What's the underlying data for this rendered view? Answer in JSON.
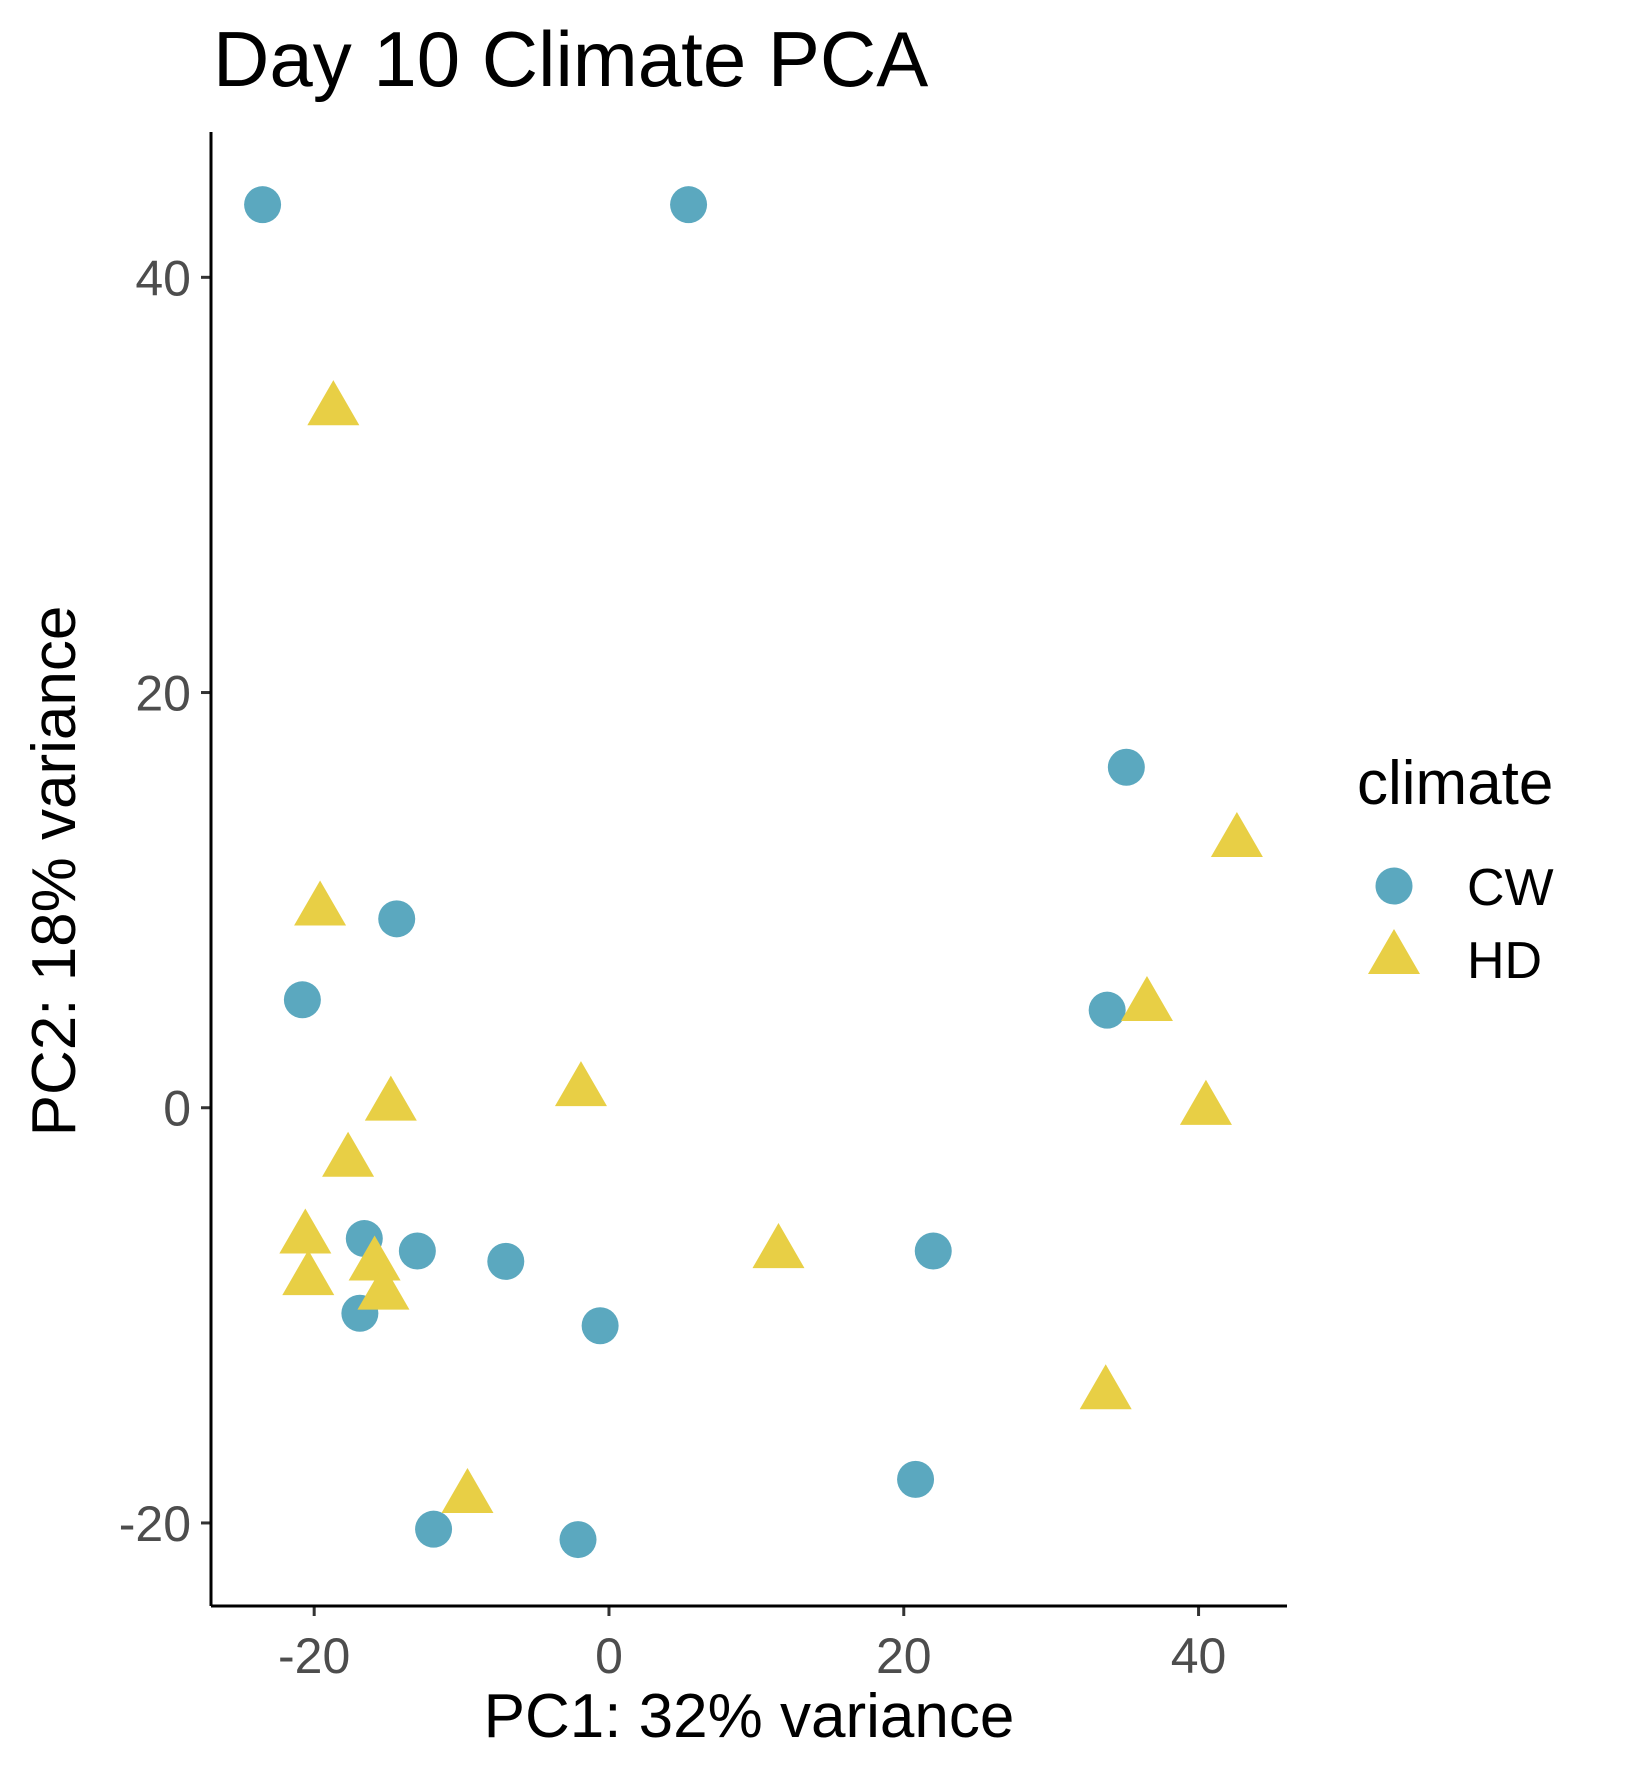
{
  "chart_data": {
    "type": "scatter",
    "title": "Day 10 Climate PCA",
    "xlabel": "PC1: 32% variance",
    "ylabel": "PC2: 18% variance",
    "xlim": [
      -27,
      46
    ],
    "ylim": [
      -24,
      47
    ],
    "x_ticks": [
      -20,
      0,
      20,
      40
    ],
    "y_ticks": [
      -20,
      0,
      20,
      40
    ],
    "x_tick_labels": [
      "-20",
      "0",
      "20",
      "40"
    ],
    "y_tick_labels": [
      "-20",
      "0",
      "20",
      "40"
    ],
    "grid": false,
    "legend": {
      "title": "climate",
      "placement": "right",
      "entries": [
        {
          "label": "CW",
          "shape": "circle",
          "color": "#5BA8BF"
        },
        {
          "label": "HD",
          "shape": "triangle",
          "color": "#E8CF45"
        }
      ]
    },
    "series": [
      {
        "name": "CW",
        "shape": "circle",
        "color": "#5BA8BF",
        "points": [
          {
            "x": -23.5,
            "y": 43.5
          },
          {
            "x": 5.4,
            "y": 43.5
          },
          {
            "x": 35.1,
            "y": 16.4
          },
          {
            "x": -14.4,
            "y": 9.1
          },
          {
            "x": -20.8,
            "y": 5.2
          },
          {
            "x": 33.8,
            "y": 4.7
          },
          {
            "x": -16.6,
            "y": -6.3
          },
          {
            "x": -13.0,
            "y": -6.9
          },
          {
            "x": -7.0,
            "y": -7.4
          },
          {
            "x": 22.0,
            "y": -6.9
          },
          {
            "x": -16.9,
            "y": -9.9
          },
          {
            "x": -0.6,
            "y": -10.5
          },
          {
            "x": 20.8,
            "y": -17.9
          },
          {
            "x": -11.9,
            "y": -20.3
          },
          {
            "x": -2.1,
            "y": -20.8
          }
        ]
      },
      {
        "name": "HD",
        "shape": "triangle",
        "color": "#E8CF45",
        "points": [
          {
            "x": -18.7,
            "y": 33.6
          },
          {
            "x": -19.6,
            "y": 9.5
          },
          {
            "x": 42.6,
            "y": 12.8
          },
          {
            "x": 36.5,
            "y": 4.9
          },
          {
            "x": -1.9,
            "y": 0.8
          },
          {
            "x": -14.8,
            "y": 0.1
          },
          {
            "x": 40.5,
            "y": -0.1
          },
          {
            "x": -17.7,
            "y": -2.6
          },
          {
            "x": -20.6,
            "y": -6.3
          },
          {
            "x": 11.5,
            "y": -7.0
          },
          {
            "x": -15.9,
            "y": -7.6
          },
          {
            "x": -20.4,
            "y": -8.3
          },
          {
            "x": -15.3,
            "y": -9.0
          },
          {
            "x": 33.7,
            "y": -13.8
          },
          {
            "x": -9.6,
            "y": -18.8
          }
        ]
      }
    ]
  }
}
